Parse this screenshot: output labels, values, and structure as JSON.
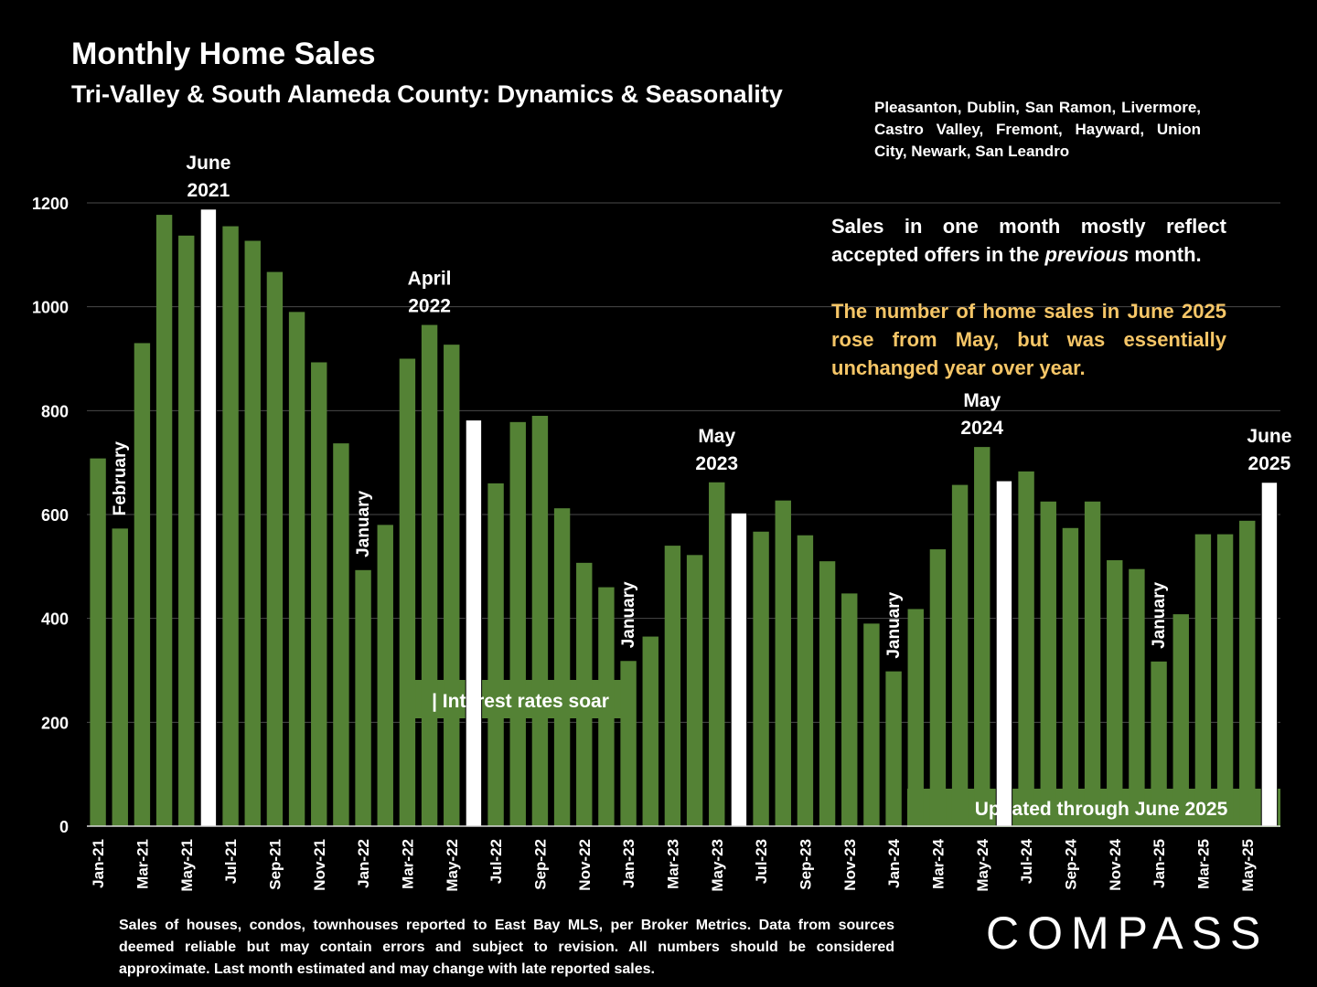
{
  "header": {
    "title": "Monthly Home Sales",
    "subtitle": "Tri-Valley & South Alameda County: Dynamics & Seasonality",
    "cities": "Pleasanton, Dublin, San Ramon, Livermore, Castro Valley, Fremont, Hayward, Union City, Newark, San Leandro"
  },
  "notes": {
    "note1_a": "Sales in one month mostly reflect accepted offers in the ",
    "note1_italic": "previous",
    "note1_b": " month.",
    "note2": "The number of home sales in June 2025 rose from May, but was essentially unchanged year over year."
  },
  "footer": {
    "footnote": "Sales of houses, condos, townhouses reported to East Bay MLS, per Broker Metrics. Data from sources deemed reliable but may contain errors and subject to revision. All numbers should be considered approximate.  Last month estimated and may change with late reported sales.",
    "logo": "COMPASS"
  },
  "colors": {
    "bar": "#548235",
    "highlight": "#ffffff",
    "background": "#000000",
    "note_accent": "#f6c667"
  },
  "chart_data": {
    "type": "bar",
    "categories": [
      "Jan-21",
      "Feb-21",
      "Mar-21",
      "Apr-21",
      "May-21",
      "Jun-21",
      "Jul-21",
      "Aug-21",
      "Sep-21",
      "Oct-21",
      "Nov-21",
      "Dec-21",
      "Jan-22",
      "Feb-22",
      "Mar-22",
      "Apr-22",
      "May-22",
      "Jun-22",
      "Jul-22",
      "Aug-22",
      "Sep-22",
      "Oct-22",
      "Nov-22",
      "Dec-22",
      "Jan-23",
      "Feb-23",
      "Mar-23",
      "Apr-23",
      "May-23",
      "Jun-23",
      "Jul-23",
      "Aug-23",
      "Sep-23",
      "Oct-23",
      "Nov-23",
      "Dec-23",
      "Jan-24",
      "Feb-24",
      "Mar-24",
      "Apr-24",
      "May-24",
      "Jun-24",
      "Jul-24",
      "Aug-24",
      "Sep-24",
      "Oct-24",
      "Nov-24",
      "Dec-24",
      "Jan-25",
      "Feb-25",
      "Mar-25",
      "Apr-25",
      "May-25",
      "Jun-25"
    ],
    "x_tick_labels": [
      "Jan-21",
      "Mar-21",
      "May-21",
      "Jul-21",
      "Sep-21",
      "Nov-21",
      "Jan-22",
      "Mar-22",
      "May-22",
      "Jul-22",
      "Sep-22",
      "Nov-22",
      "Jan-23",
      "Mar-23",
      "May-23",
      "Jul-23",
      "Sep-23",
      "Nov-23",
      "Jan-24",
      "Mar-24",
      "May-24",
      "Jul-24",
      "Sep-24",
      "Nov-24",
      "Jan-25",
      "Mar-25",
      "May-25"
    ],
    "values": [
      708,
      573,
      930,
      1177,
      1137,
      1188,
      1155,
      1127,
      1067,
      990,
      893,
      737,
      493,
      580,
      900,
      965,
      927,
      782,
      660,
      778,
      790,
      612,
      507,
      460,
      318,
      365,
      540,
      522,
      662,
      603,
      567,
      627,
      560,
      510,
      448,
      390,
      298,
      418,
      533,
      657,
      730,
      665,
      683,
      625,
      574,
      625,
      512,
      495,
      317,
      408,
      562,
      562,
      588,
      662
    ],
    "highlight_categories": [
      "Jun-21",
      "Jun-22",
      "Jun-23",
      "Jun-24",
      "Jun-25"
    ],
    "ylim": [
      0,
      1200
    ],
    "yticks": [
      0,
      200,
      400,
      600,
      800,
      1000,
      1200
    ],
    "grid": true,
    "peak_labels": [
      {
        "category": "Jun-21",
        "line1": "June",
        "line2": "2021"
      },
      {
        "category": "Apr-22",
        "line1": "April",
        "line2": "2022"
      },
      {
        "category": "May-23",
        "line1": "May",
        "line2": "2023"
      },
      {
        "category": "May-24",
        "line1": "May",
        "line2": "2024"
      },
      {
        "category": "Jun-25",
        "line1": "June",
        "line2": "2025"
      }
    ],
    "vertical_labels": [
      {
        "category": "Feb-21",
        "text": "February"
      },
      {
        "category": "Jan-22",
        "text": "January"
      },
      {
        "category": "Jan-23",
        "text": "January"
      },
      {
        "category": "Jan-24",
        "text": "January"
      },
      {
        "category": "Jan-25",
        "text": "January"
      }
    ],
    "annotations": [
      {
        "text": "| Interest rates soar"
      },
      {
        "text": "Updated through June 2025"
      }
    ]
  }
}
